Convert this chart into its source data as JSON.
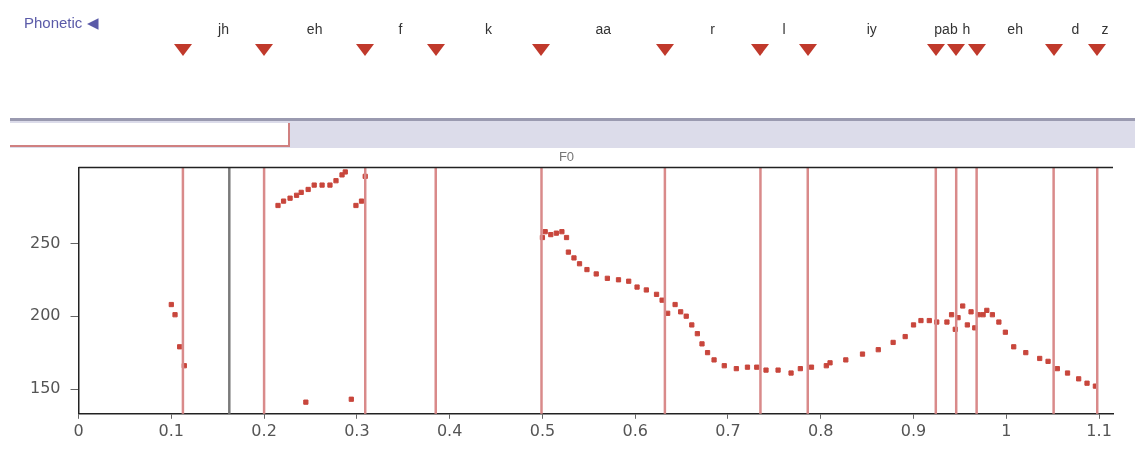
{
  "chart_data": {
    "type": "scatter",
    "title": "F0",
    "marker": "square",
    "grid": false,
    "legend": false,
    "xlim": [
      0,
      1.115
    ],
    "xticks": [
      {
        "value": 0,
        "label": "0"
      },
      0.1,
      0.2,
      0.3,
      0.4,
      0.5,
      0.6,
      0.7,
      0.8,
      0.9,
      {
        "value": 1,
        "label": "1"
      },
      1.1
    ],
    "ylim": [
      133,
      302
    ],
    "yticks": [
      150,
      200,
      250
    ],
    "series": [
      {
        "color": "#c8463c",
        "x": [
          0.1,
          0.104,
          0.109,
          0.114,
          0.215,
          0.221,
          0.228,
          0.235,
          0.24,
          0.245,
          0.2475,
          0.254,
          0.2625,
          0.271,
          0.2775,
          0.284,
          0.2875,
          0.294,
          0.299,
          0.305,
          0.309,
          0.5,
          0.503,
          0.509,
          0.515,
          0.521,
          0.526,
          0.528,
          0.534,
          0.54,
          0.548,
          0.558,
          0.57,
          0.582,
          0.593,
          0.602,
          0.612,
          0.623,
          0.629,
          0.635,
          0.643,
          0.649,
          0.655,
          0.661,
          0.667,
          0.672,
          0.678,
          0.685,
          0.696,
          0.709,
          0.721,
          0.731,
          0.741,
          0.754,
          0.768,
          0.778,
          0.79,
          0.806,
          0.81,
          0.827,
          0.845,
          0.862,
          0.878,
          0.891,
          0.9,
          0.908,
          0.917,
          0.925,
          0.936,
          0.941,
          0.945,
          0.948,
          0.953,
          0.958,
          0.962,
          0.966,
          0.97,
          0.975,
          0.979,
          0.985,
          0.992,
          0.999,
          1.008,
          1.021,
          1.036,
          1.045,
          1.055,
          1.066,
          1.078,
          1.087,
          1.096
        ],
        "values": [
          208,
          201,
          179,
          166,
          276,
          279,
          281,
          283,
          285,
          141,
          287,
          290,
          290,
          290,
          293,
          297,
          299,
          143,
          276,
          279,
          296,
          254,
          258,
          256,
          257,
          258,
          254,
          244,
          240,
          236,
          232,
          229,
          226,
          225,
          224,
          220,
          218,
          215,
          211,
          202,
          208,
          203,
          200,
          194,
          188,
          181,
          175,
          170,
          166,
          164,
          165,
          165,
          163,
          163,
          161,
          164,
          165,
          166,
          168,
          170,
          174,
          177,
          182,
          186,
          194,
          197,
          197,
          196,
          196,
          201,
          191,
          199,
          207,
          194,
          203,
          192,
          201,
          201,
          204,
          201,
          196,
          189,
          179,
          175,
          171,
          169,
          164,
          161,
          157,
          154,
          152
        ]
      }
    ],
    "ref_lines": [
      {
        "axis": "x",
        "value": 0.1125,
        "color": "#d98a8a"
      },
      {
        "axis": "x",
        "value": 0.1625,
        "color": "#7a7a7a"
      },
      {
        "axis": "x",
        "value": 0.2,
        "color": "#d98a8a"
      },
      {
        "axis": "x",
        "value": 0.309,
        "color": "#d98a8a"
      },
      {
        "axis": "x",
        "value": 0.385,
        "color": "#d98a8a"
      },
      {
        "axis": "x",
        "value": 0.499,
        "color": "#d98a8a"
      },
      {
        "axis": "x",
        "value": 0.632,
        "color": "#d98a8a"
      },
      {
        "axis": "x",
        "value": 0.735,
        "color": "#d98a8a"
      },
      {
        "axis": "x",
        "value": 0.786,
        "color": "#d98a8a"
      },
      {
        "axis": "x",
        "value": 0.924,
        "color": "#d98a8a"
      },
      {
        "axis": "x",
        "value": 0.946,
        "color": "#d98a8a"
      },
      {
        "axis": "x",
        "value": 0.968,
        "color": "#d98a8a"
      },
      {
        "axis": "x",
        "value": 1.051,
        "color": "#d98a8a"
      },
      {
        "axis": "x",
        "value": 1.098,
        "color": "#d98a8a"
      }
    ],
    "annotations": [
      "Phonetic ◀",
      "jh",
      "eh",
      "f",
      "k",
      "aa",
      "r",
      "l",
      "iy",
      "pab",
      "h",
      "eh",
      "d",
      "z"
    ]
  }
}
